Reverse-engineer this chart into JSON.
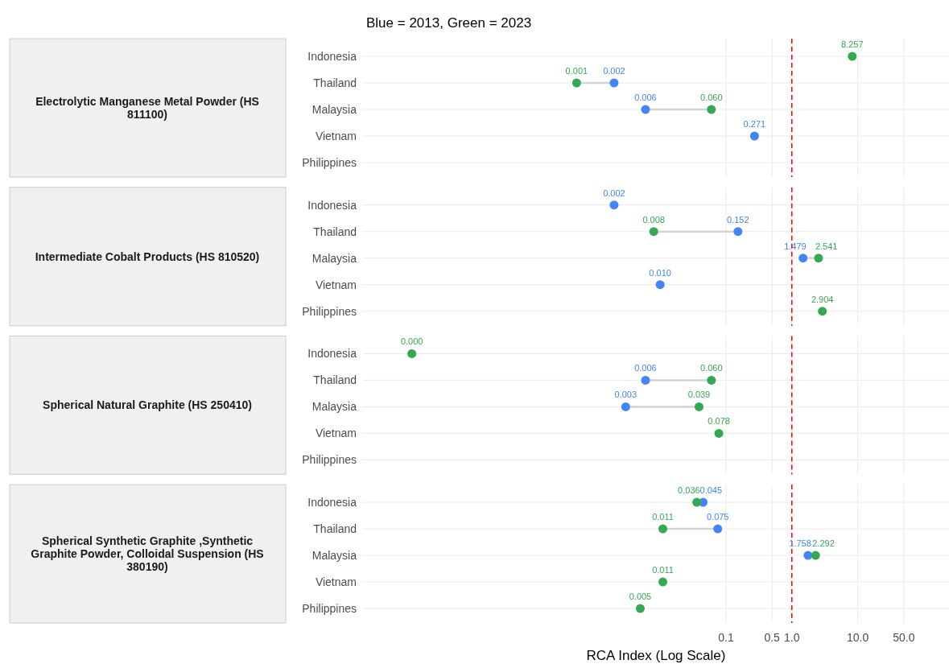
{
  "chart_data": [
    {
      "type": "scatter",
      "orientation": "horizontal",
      "title": "Electrolytic Manganese Metal Powder (HS 811100)",
      "annotations": [
        "Blue = 2013, Green = 2023"
      ],
      "categories": [
        "Indonesia",
        "Thailand",
        "Malaysia",
        "Vietnam",
        "Philippines"
      ],
      "log": "x",
      "xlim": [
        3e-07,
        250
      ],
      "tick_labels": "y",
      "grid": true,
      "marker": "circle",
      "ref_lines": [
        {
          "axis": "x",
          "value": 1,
          "color": "#ff0000",
          "line_style": "dashed"
        }
      ],
      "series": [
        {
          "color": "#4285f4",
          "values": [
            null,
            0.002,
            0.006,
            0.271,
            null
          ],
          "value_labels": [
            null,
            "0.002",
            "0.006",
            "0.271",
            null
          ]
        },
        {
          "color": "#34a853",
          "values": [
            8.257,
            0.00054,
            0.06,
            null,
            null
          ],
          "value_labels": [
            "8.257",
            "0.001",
            "0.060",
            null,
            null
          ]
        }
      ]
    },
    {
      "type": "scatter",
      "orientation": "horizontal",
      "title": "Intermediate Cobalt Products (HS 810520)",
      "categories": [
        "Indonesia",
        "Thailand",
        "Malaysia",
        "Vietnam",
        "Philippines"
      ],
      "log": "x",
      "xlim": [
        3e-07,
        250
      ],
      "tick_labels": "y",
      "grid": true,
      "marker": "circle",
      "ref_lines": [
        {
          "axis": "x",
          "value": 1,
          "color": "#ff0000",
          "line_style": "dashed"
        }
      ],
      "series": [
        {
          "color": "#4285f4",
          "values": [
            0.002,
            0.152,
            1.479,
            0.01,
            null
          ],
          "value_labels": [
            "0.002",
            "0.152",
            "1.479",
            "0.010",
            null
          ]
        },
        {
          "color": "#34a853",
          "values": [
            null,
            0.008,
            2.541,
            null,
            2.904
          ],
          "value_labels": [
            null,
            "0.008",
            "2.541",
            null,
            "2.904"
          ]
        }
      ]
    },
    {
      "type": "scatter",
      "orientation": "horizontal",
      "title": "Spherical Natural Graphite (HS 250410)",
      "categories": [
        "Indonesia",
        "Thailand",
        "Malaysia",
        "Vietnam",
        "Philippines"
      ],
      "log": "x",
      "xlim": [
        3e-07,
        250
      ],
      "tick_labels": "y",
      "grid": true,
      "marker": "circle",
      "ref_lines": [
        {
          "axis": "x",
          "value": 1,
          "color": "#ff0000",
          "line_style": "dashed"
        }
      ],
      "series": [
        {
          "color": "#4285f4",
          "values": [
            null,
            0.006,
            0.003,
            null,
            null
          ],
          "value_labels": [
            null,
            "0.006",
            "0.003",
            null,
            null
          ]
        },
        {
          "color": "#34a853",
          "values": [
            1.7e-06,
            0.06,
            0.039,
            0.078,
            null
          ],
          "value_labels": [
            "0.000",
            "0.060",
            "0.039",
            "0.078",
            null
          ]
        }
      ]
    },
    {
      "type": "scatter",
      "orientation": "horizontal",
      "title": "Spherical Synthetic Graphite ,Synthetic Graphite Powder, Colloidal Suspension (HS 380190)",
      "xlabel": "RCA Index (Log Scale)",
      "categories": [
        "Indonesia",
        "Thailand",
        "Malaysia",
        "Vietnam",
        "Philippines"
      ],
      "log": "x",
      "xlim": [
        3e-07,
        250
      ],
      "xticks": [
        0.1,
        0.5,
        {
          "value": 1,
          "label": "1.0"
        },
        {
          "value": 10,
          "label": "10.0"
        },
        {
          "value": 50,
          "label": "50.0"
        }
      ],
      "grid": true,
      "marker": "circle",
      "ref_lines": [
        {
          "axis": "x",
          "value": 1,
          "color": "#ff0000",
          "line_style": "dashed"
        }
      ],
      "series": [
        {
          "color": "#4285f4",
          "values": [
            0.045,
            0.075,
            1.758,
            null,
            null
          ],
          "value_labels": [
            "0.045",
            "0.075",
            "1.758",
            null,
            null
          ]
        },
        {
          "color": "#34a853",
          "values": [
            0.036,
            0.011,
            2.292,
            0.011,
            0.005
          ],
          "value_labels": [
            "0.036",
            "0.011",
            "2.292",
            "0.011",
            "0.005"
          ]
        }
      ]
    }
  ]
}
